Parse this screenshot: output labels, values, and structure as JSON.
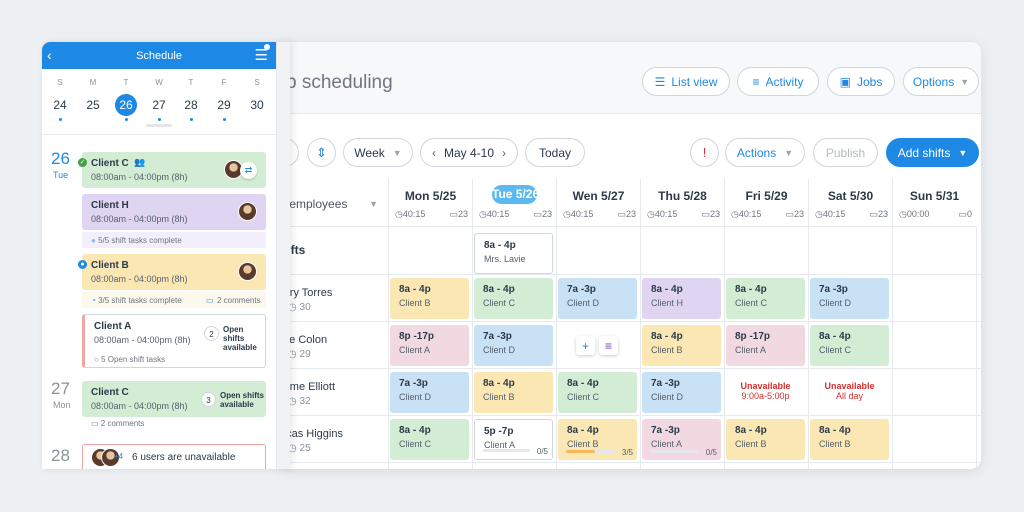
{
  "desktop": {
    "title": "b scheduling",
    "top_buttons": [
      {
        "label": "List view",
        "icon": "list-icon"
      },
      {
        "label": "Activity",
        "icon": "activity-icon"
      },
      {
        "label": "Jobs",
        "icon": "briefcase-icon"
      },
      {
        "label": "Options",
        "icon": "chevron-down-icon"
      }
    ],
    "toolbar": {
      "view_select": "Week",
      "date_range": "May 4-10",
      "today_label": "Today",
      "actions_label": "Actions",
      "publish_label": "Publish",
      "add_shifts_label": "Add shifts"
    },
    "employees_filter": "y employees",
    "open_shifts_label": "hifts",
    "days": [
      {
        "label": "Mon 5/25",
        "hours": "40:15",
        "count": "23",
        "today": false
      },
      {
        "label": "Tue 5/26",
        "hours": "40:15",
        "count": "23",
        "today": true
      },
      {
        "label": "Wen 5/27",
        "hours": "40:15",
        "count": "23",
        "today": false
      },
      {
        "label": "Thu 5/28",
        "hours": "40:15",
        "count": "23",
        "today": false
      },
      {
        "label": "Fri  5/29",
        "hours": "40:15",
        "count": "23",
        "today": false
      },
      {
        "label": "Sat 5/30",
        "hours": "40:15",
        "count": "23",
        "today": false
      },
      {
        "label": "Sun 5/31",
        "hours": "00:00",
        "count": "0",
        "today": false
      }
    ],
    "open_shift": {
      "time": "8a - 4p",
      "client": "Mrs. Lavie"
    },
    "employees": [
      {
        "name": "arry Torres",
        "hours": "30"
      },
      {
        "name": "ate Colon",
        "hours": "29"
      },
      {
        "name": "rome Elliott",
        "hours": "32"
      },
      {
        "name": "ucas Higgins",
        "hours": "25"
      }
    ],
    "shifts": [
      [
        {
          "time": "8a - 4p",
          "client": "Client B",
          "color": "yellow"
        },
        {
          "time": "8a - 4p",
          "client": "Client C",
          "color": "green"
        },
        {
          "time": "7a -3p",
          "client": "Client D",
          "color": "blue"
        },
        {
          "time": "8a - 4p",
          "client": "Client H",
          "color": "purple"
        },
        {
          "time": "8a - 4p",
          "client": "Client C",
          "color": "green"
        },
        {
          "time": "7a -3p",
          "client": "Client D",
          "color": "blue"
        }
      ],
      [
        {
          "time": "8p -17p",
          "client": "Client A",
          "color": "pink"
        },
        {
          "time": "7a -3p",
          "client": "Client D",
          "color": "blue"
        },
        null,
        {
          "time": "8a - 4p",
          "client": "Client B",
          "color": "yellow"
        },
        {
          "time": "8p -17p",
          "client": "Client A",
          "color": "pink"
        },
        {
          "time": "8a - 4p",
          "client": "Client C",
          "color": "green"
        }
      ],
      [
        {
          "time": "7a -3p",
          "client": "Client D",
          "color": "blue"
        },
        {
          "time": "8a - 4p",
          "client": "Client B",
          "color": "yellow"
        },
        {
          "time": "8a - 4p",
          "client": "Client C",
          "color": "green"
        },
        {
          "time": "7a -3p",
          "client": "Client D",
          "color": "blue"
        },
        {
          "unavailable": "Unavailable",
          "detail": "9:00a-5:00p"
        },
        {
          "unavailable": "Unavailable",
          "detail": "All day"
        }
      ],
      [
        {
          "time": "8a - 4p",
          "client": "Client C",
          "color": "green"
        },
        {
          "time": "5p -7p",
          "client": "Client A",
          "color": "white",
          "progress": "0/5",
          "fraction": 0
        },
        {
          "time": "8a - 4p",
          "client": "Client B",
          "color": "yellow",
          "progress": "3/5",
          "fraction": 0.6
        },
        {
          "time": "7a -3p",
          "client": "Client A",
          "color": "pink",
          "progress": "0/5",
          "fraction": 0
        },
        {
          "time": "8a - 4p",
          "client": "Client B",
          "color": "yellow"
        },
        {
          "time": "8a - 4p",
          "client": "Client B",
          "color": "yellow"
        }
      ]
    ]
  },
  "mobile": {
    "title": "Schedule",
    "week_letters": [
      "S",
      "M",
      "T",
      "W",
      "T",
      "F",
      "S"
    ],
    "week_numbers": [
      "24",
      "25",
      "26",
      "27",
      "28",
      "29",
      "30"
    ],
    "selected_day": "26",
    "day1": {
      "num": "26",
      "name": "Tue"
    },
    "day2": {
      "num": "27",
      "name": "Mon"
    },
    "day3": {
      "num": "28"
    },
    "cards": [
      {
        "client": "Client C",
        "time": "08:00am - 04:00pm (8h)"
      },
      {
        "client": "Client H",
        "time": "08:00am - 04:00pm (8h)",
        "tasks": "5/5 shift tasks complete"
      },
      {
        "client": "Client B",
        "time": "08:00am - 04:00pm (8h)",
        "tasks": "3/5 shift tasks complete",
        "comments": "2 comments"
      },
      {
        "client": "Client A",
        "time": "08:00am - 04:00pm (8h)",
        "open_count": "2",
        "open_label_1": "Open shifts",
        "open_label_2": "available",
        "tasks": "5 Open shift tasks"
      },
      {
        "client": "Client C",
        "time": "08:00am - 04:00pm (8h)",
        "open_count": "3",
        "open_label_1": "Open shifts",
        "open_label_2": "available",
        "comments": "2 comments"
      }
    ],
    "unavailable": {
      "more": "+4",
      "text": "6 users are unavailable"
    }
  },
  "colors": {
    "accent": "#1e88e5",
    "today": "#5bb9f0",
    "danger": "#d32f2f"
  }
}
